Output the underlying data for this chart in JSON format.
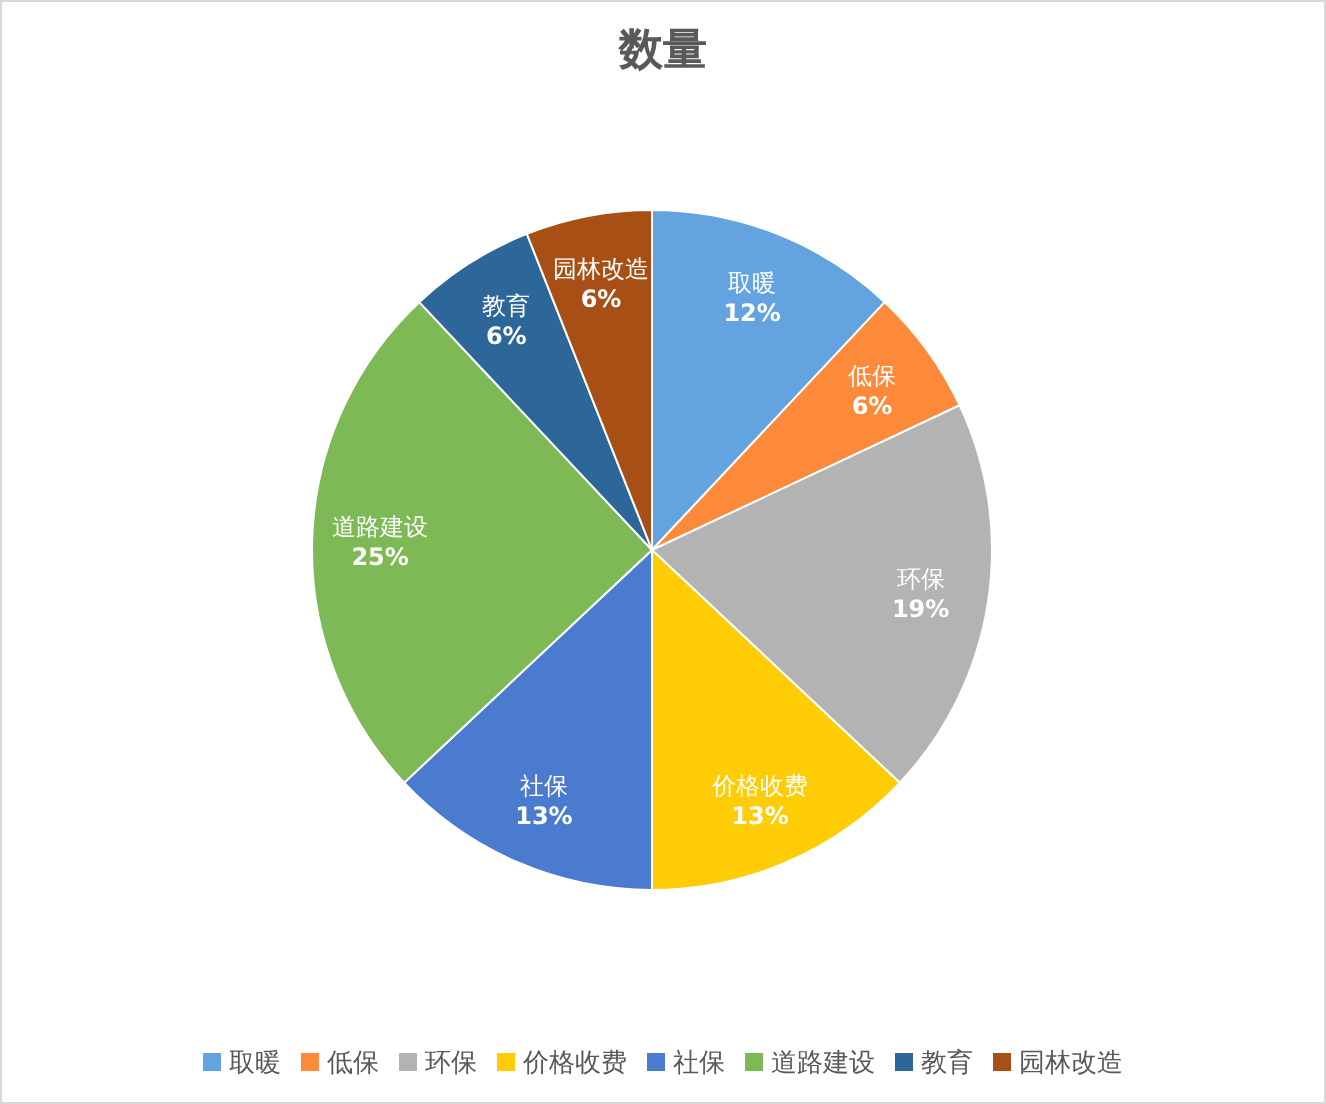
{
  "chart_data": {
    "type": "pie",
    "title": "数量",
    "categories": [
      "取暖",
      "低保",
      "环保",
      "价格收费",
      "社保",
      "道路建设",
      "教育",
      "园林改造"
    ],
    "values": [
      12,
      6,
      19,
      13,
      13,
      25,
      6,
      6
    ],
    "colors": [
      "#62a3e0",
      "#fd8a3a",
      "#b3b3b3",
      "#ffcc05",
      "#4b7bcf",
      "#7db954",
      "#2d6699",
      "#a84f16"
    ],
    "value_labels": [
      "12%",
      "6%",
      "19%",
      "13%",
      "13%",
      "25%",
      "6%",
      "6%"
    ],
    "legend": "bottom"
  }
}
